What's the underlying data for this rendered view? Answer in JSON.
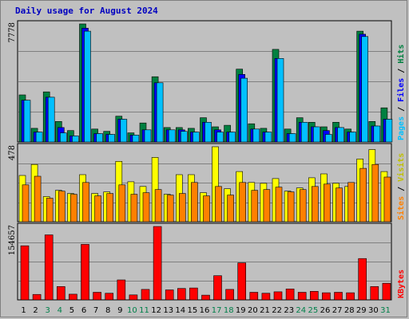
{
  "chart_data": {
    "title": "Daily usage for August 2024",
    "type": "bar",
    "days": [
      "1",
      "2",
      "3",
      "4",
      "5",
      "6",
      "7",
      "8",
      "9",
      "10",
      "11",
      "12",
      "13",
      "14",
      "15",
      "16",
      "17",
      "18",
      "19",
      "20",
      "21",
      "22",
      "23",
      "24",
      "25",
      "26",
      "27",
      "28",
      "29",
      "30",
      "31"
    ],
    "weekend_days": [
      "3",
      "4",
      "10",
      "11",
      "17",
      "18",
      "24",
      "25",
      "31"
    ],
    "panels": [
      {
        "name": "hits_files_pages",
        "ymax_label": "7778",
        "ymax": 7778,
        "right_labels": [
          "Pages",
          "Files",
          "Hits"
        ],
        "series": [
          {
            "name": "Hits",
            "color": "#008040",
            "values": [
              3100,
              900,
              3300,
              1350,
              750,
              7778,
              850,
              700,
              1700,
              600,
              1250,
              4300,
              950,
              950,
              900,
              1600,
              1000,
              1100,
              4800,
              1200,
              900,
              6100,
              850,
              1600,
              1300,
              1000,
              1300,
              850,
              7300,
              1350,
              2250
            ]
          },
          {
            "name": "Files",
            "color": "#0000FF",
            "values": [
              2750,
              650,
              2950,
              950,
              400,
              7500,
              550,
              500,
              1500,
              450,
              800,
              3900,
              800,
              800,
              650,
              1300,
              800,
              650,
              4450,
              850,
              650,
              5500,
              550,
              1300,
              1000,
              750,
              950,
              650,
              7100,
              1050,
              1500
            ]
          },
          {
            "name": "Pages",
            "color": "#00C0FF",
            "values": [
              2750,
              650,
              2950,
              600,
              400,
              7300,
              550,
              500,
              1500,
              450,
              800,
              3900,
              800,
              700,
              650,
              1300,
              650,
              650,
              4200,
              850,
              650,
              5500,
              550,
              1300,
              1000,
              500,
              950,
              650,
              6950,
              1050,
              1500
            ]
          }
        ]
      },
      {
        "name": "visits_sites",
        "ymax_label": "478",
        "ymax": 478,
        "right_labels": [
          "Sites",
          "Visits"
        ],
        "series": [
          {
            "name": "Visits",
            "color": "#FFFF00",
            "values": [
              295,
              365,
              160,
              200,
              180,
              300,
              180,
              190,
              385,
              255,
              225,
              410,
              175,
              300,
              300,
              185,
              478,
              210,
              320,
              250,
              245,
              275,
              195,
              215,
              280,
              305,
              245,
              225,
              400,
              460,
              320
            ]
          },
          {
            "name": "Sites",
            "color": "#FF8000",
            "values": [
              235,
              290,
              150,
              195,
              175,
              250,
              165,
              180,
              235,
              175,
              185,
              205,
              170,
              180,
              250,
              165,
              225,
              170,
              250,
              200,
              205,
              220,
              190,
              205,
              225,
              240,
              215,
              250,
              340,
              365,
              285
            ]
          }
        ]
      },
      {
        "name": "kbytes",
        "ymax_label": "154657",
        "ymax": 154657,
        "right_labels": [
          "KBytes"
        ],
        "series": [
          {
            "name": "KBytes",
            "color": "#FF0000",
            "values": [
              114000,
              11500,
              137000,
              28000,
              12000,
              117000,
              16000,
              14000,
              42000,
              10500,
              22000,
              154657,
              21000,
              24000,
              25000,
              10000,
              51000,
              22000,
              78000,
              16000,
              14000,
              17000,
              23000,
              16000,
              18000,
              15000,
              16000,
              15000,
              87000,
              28000,
              35000
            ]
          }
        ]
      }
    ]
  }
}
